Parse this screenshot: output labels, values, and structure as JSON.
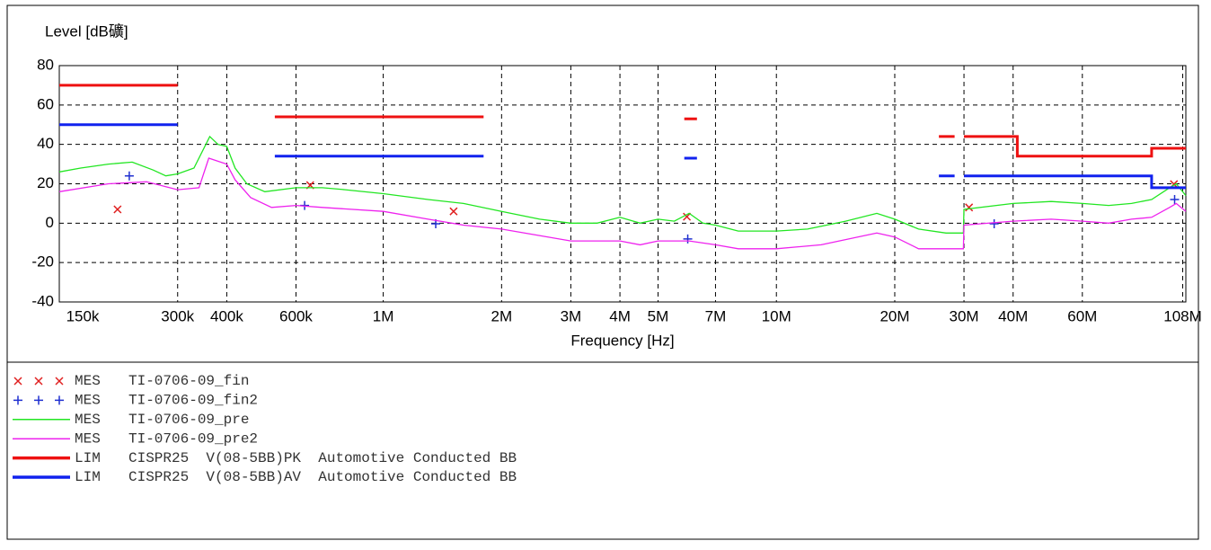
{
  "chart_data": {
    "type": "line",
    "ylabel": "Level [dB礦]",
    "xlabel": "Frequency [Hz]",
    "xscale": "log",
    "grid": true,
    "xlim": [
      150000,
      110000000
    ],
    "ylim": [
      -40,
      80
    ],
    "yticks": [
      -40,
      -20,
      0,
      20,
      40,
      60,
      80
    ],
    "xticks": [
      {
        "value": 150000,
        "label": "150k"
      },
      {
        "value": 300000,
        "label": "300k"
      },
      {
        "value": 400000,
        "label": "400k"
      },
      {
        "value": 600000,
        "label": "600k"
      },
      {
        "value": 1000000,
        "label": "1M"
      },
      {
        "value": 2000000,
        "label": "2M"
      },
      {
        "value": 3000000,
        "label": "3M"
      },
      {
        "value": 4000000,
        "label": "4M"
      },
      {
        "value": 5000000,
        "label": "5M"
      },
      {
        "value": 7000000,
        "label": "7M"
      },
      {
        "value": 10000000,
        "label": "10M"
      },
      {
        "value": 20000000,
        "label": "20M"
      },
      {
        "value": 30000000,
        "label": "30M"
      },
      {
        "value": 40000000,
        "label": "40M"
      },
      {
        "value": 60000000,
        "label": "60M"
      },
      {
        "value": 108000000,
        "label": "108M"
      }
    ],
    "series": [
      {
        "prefix": "MES",
        "name": "TI-0706-09_fin",
        "color": "#e02020",
        "style": "x",
        "x": [
          211000,
          652000,
          1510000,
          5920000,
          30900000,
          102600000
        ],
        "values": [
          7,
          19.3,
          6,
          3.3,
          8,
          19.8
        ]
      },
      {
        "prefix": "MES",
        "name": "TI-0706-09_fin2",
        "color": "#2030d0",
        "style": "+",
        "x": [
          226000,
          631000,
          1360000,
          5950000,
          35800000,
          103000000
        ],
        "values": [
          24,
          9,
          -0.3,
          -8,
          -0.3,
          12
        ]
      },
      {
        "prefix": "MES",
        "name": "TI-0706-09_pre",
        "color": "#22e622",
        "style": "line",
        "x": [
          150000,
          170000,
          200000,
          230000,
          260000,
          280000,
          300000,
          330000,
          362000,
          380000,
          400000,
          420000,
          450000,
          500000,
          600000,
          700000,
          800000,
          1000000,
          1300000,
          1600000,
          2000000,
          2500000,
          3000000,
          3500000,
          4000000,
          4500000,
          5000000,
          5500000,
          6000000,
          6500000,
          7000000,
          8000000,
          10000000,
          12000000,
          15000000,
          18000000,
          20000000,
          23000000,
          27000000,
          29900000,
          30000000,
          40000000,
          50000000,
          60000000,
          70000000,
          80000000,
          90000000,
          100000000,
          104000000,
          110000000
        ],
        "values": [
          26,
          28,
          30,
          31,
          27,
          24,
          25,
          28,
          44,
          40,
          39,
          28,
          20,
          16,
          18,
          18,
          17,
          15,
          12,
          10,
          6,
          2,
          0,
          0,
          3,
          0,
          2,
          1,
          5,
          0,
          -1,
          -4,
          -4,
          -3,
          1,
          5,
          2,
          -3,
          -5,
          -5,
          7,
          10,
          11,
          10,
          9,
          10,
          12,
          18,
          20,
          14
        ]
      },
      {
        "prefix": "MES",
        "name": "TI-0706-09_pre2",
        "color": "#ee22ee",
        "style": "line",
        "x": [
          150000,
          200000,
          250000,
          300000,
          340000,
          360000,
          400000,
          420000,
          460000,
          520000,
          600000,
          700000,
          1000000,
          1300000,
          1600000,
          2000000,
          3000000,
          4000000,
          4500000,
          5000000,
          6000000,
          7000000,
          8000000,
          10000000,
          13000000,
          18000000,
          20000000,
          23000000,
          29900000,
          30000000,
          40000000,
          50000000,
          60000000,
          70000000,
          80000000,
          90000000,
          100000000,
          104000000,
          110000000
        ],
        "values": [
          16,
          20,
          21,
          17,
          18,
          33,
          30,
          22,
          13,
          8,
          9,
          8,
          6,
          2,
          -1,
          -3,
          -9,
          -9,
          -11,
          -9,
          -9,
          -11,
          -13,
          -13,
          -11,
          -5,
          -7,
          -13,
          -13,
          -1,
          1,
          2,
          1,
          0,
          2,
          3,
          8,
          10,
          6
        ]
      },
      {
        "prefix": "LIM",
        "name": "CISPR25  V(08-5BB)PK  Automotive Conducted BB",
        "color": "#ee1111",
        "style": "limit",
        "x": [
          150000,
          300000,
          null,
          530000,
          1800000,
          null,
          5830000,
          6280000,
          null,
          25900000,
          28400000,
          null,
          30000000,
          41000000,
          41000000,
          90000000,
          90000000,
          110000000
        ],
        "values": [
          70,
          70,
          null,
          54,
          54,
          null,
          53,
          53,
          null,
          44,
          44,
          null,
          44,
          44,
          34,
          34,
          38,
          38
        ]
      },
      {
        "prefix": "LIM",
        "name": "CISPR25  V(08-5BB)AV  Automotive Conducted BB",
        "color": "#1122ee",
        "style": "limit",
        "x": [
          150000,
          300000,
          null,
          530000,
          1800000,
          null,
          5830000,
          6280000,
          null,
          25900000,
          28400000,
          null,
          30000000,
          90000000,
          90000000,
          110000000
        ],
        "values": [
          50,
          50,
          null,
          34,
          34,
          null,
          33,
          33,
          null,
          24,
          24,
          null,
          24,
          24,
          18,
          18
        ]
      }
    ]
  }
}
